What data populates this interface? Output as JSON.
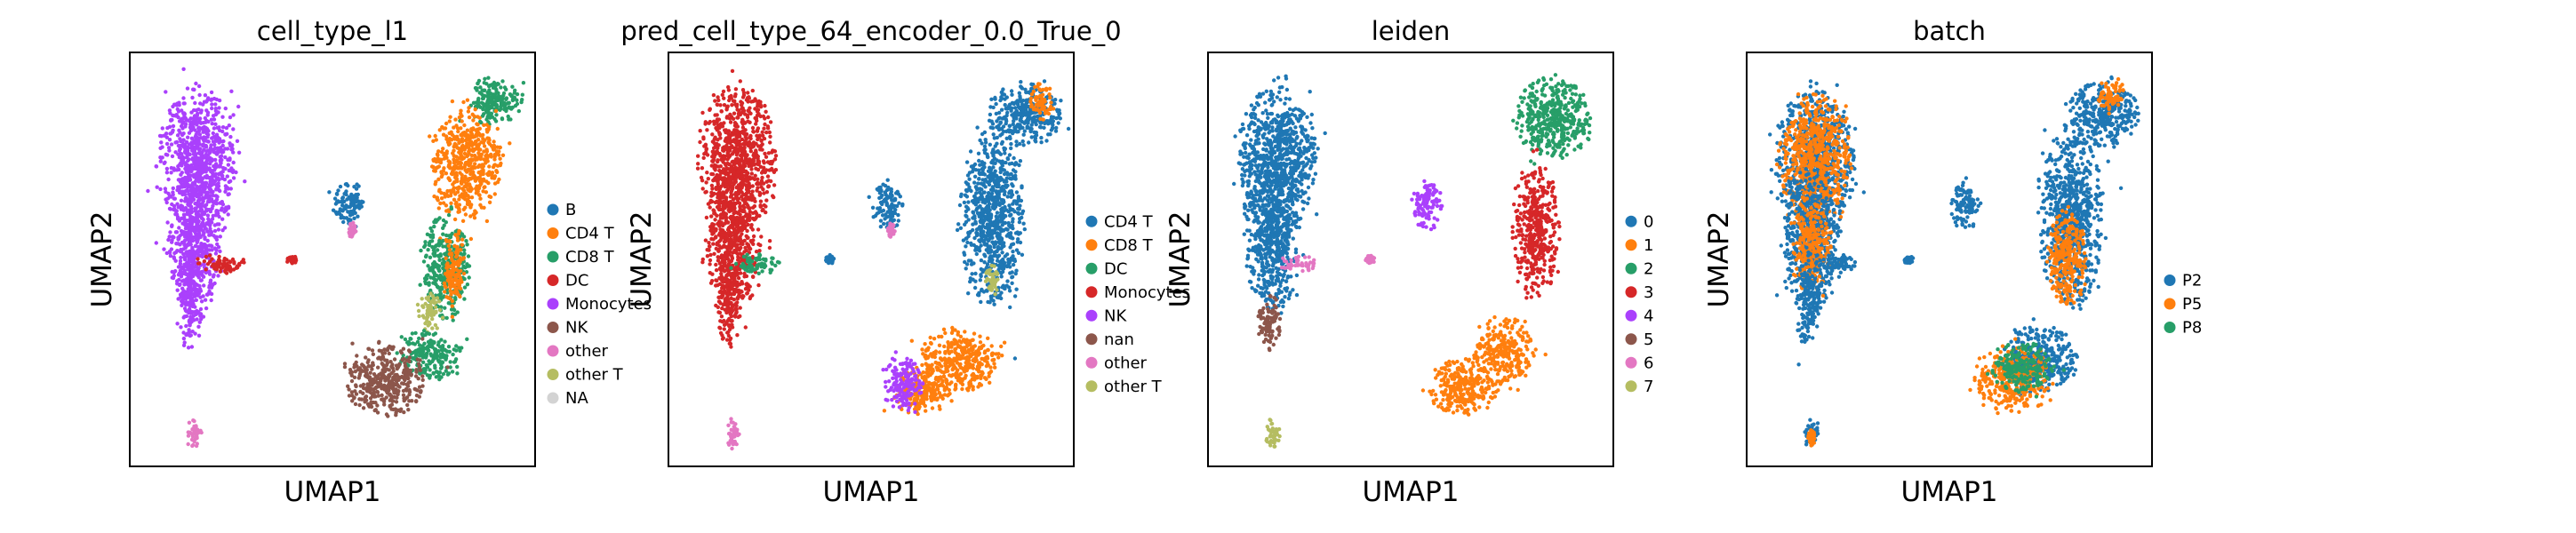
{
  "chart_data": [
    {
      "type": "scatter",
      "title": "cell_type_l1",
      "xlabel": "UMAP1",
      "ylabel": "UMAP2",
      "legend_placement": "right-outside",
      "legend": [
        {
          "label": "B",
          "color": "#1f77b4"
        },
        {
          "label": "CD4 T",
          "color": "#ff7f0e"
        },
        {
          "label": "CD8 T",
          "color": "#279e68"
        },
        {
          "label": "DC",
          "color": "#d62728"
        },
        {
          "label": "Monocytes",
          "color": "#aa40fc"
        },
        {
          "label": "NK",
          "color": "#8c564b"
        },
        {
          "label": "other",
          "color": "#e377c2"
        },
        {
          "label": "other T",
          "color": "#b5bd61"
        },
        {
          "label": "NA",
          "color": "#d3d3d3"
        }
      ],
      "clusters": [
        {
          "c": 4,
          "x": 0.17,
          "y": 0.26,
          "rx": 0.1,
          "ry": 0.18
        },
        {
          "c": 4,
          "x": 0.16,
          "y": 0.45,
          "rx": 0.07,
          "ry": 0.18
        },
        {
          "c": 4,
          "x": 0.15,
          "y": 0.6,
          "rx": 0.03,
          "ry": 0.12
        },
        {
          "c": 3,
          "x": 0.22,
          "y": 0.51,
          "rx": 0.06,
          "ry": 0.025
        },
        {
          "c": 3,
          "x": 0.4,
          "y": 0.5,
          "rx": 0.012,
          "ry": 0.01
        },
        {
          "c": 6,
          "x": 0.16,
          "y": 0.92,
          "rx": 0.018,
          "ry": 0.04
        },
        {
          "c": 0,
          "x": 0.54,
          "y": 0.37,
          "rx": 0.04,
          "ry": 0.06
        },
        {
          "c": 6,
          "x": 0.55,
          "y": 0.43,
          "rx": 0.01,
          "ry": 0.02
        },
        {
          "c": 2,
          "x": 0.9,
          "y": 0.12,
          "rx": 0.07,
          "ry": 0.06
        },
        {
          "c": 1,
          "x": 0.83,
          "y": 0.27,
          "rx": 0.09,
          "ry": 0.14
        },
        {
          "c": 2,
          "x": 0.78,
          "y": 0.52,
          "rx": 0.06,
          "ry": 0.13
        },
        {
          "c": 1,
          "x": 0.8,
          "y": 0.52,
          "rx": 0.03,
          "ry": 0.1
        },
        {
          "c": 7,
          "x": 0.74,
          "y": 0.63,
          "rx": 0.03,
          "ry": 0.05
        },
        {
          "c": 2,
          "x": 0.74,
          "y": 0.73,
          "rx": 0.08,
          "ry": 0.06
        },
        {
          "c": 5,
          "x": 0.63,
          "y": 0.79,
          "rx": 0.1,
          "ry": 0.09
        }
      ]
    },
    {
      "type": "scatter",
      "title": "pred_cell_type_64_encoder_0.0_True_0",
      "xlabel": "UMAP1",
      "ylabel": "UMAP2",
      "legend_placement": "right-outside",
      "legend": [
        {
          "label": "CD4 T",
          "color": "#1f77b4"
        },
        {
          "label": "CD8 T",
          "color": "#ff7f0e"
        },
        {
          "label": "DC",
          "color": "#279e68"
        },
        {
          "label": "Monocytes",
          "color": "#d62728"
        },
        {
          "label": "NK",
          "color": "#aa40fc"
        },
        {
          "label": "nan",
          "color": "#8c564b"
        },
        {
          "label": "other",
          "color": "#e377c2"
        },
        {
          "label": "other T",
          "color": "#b5bd61"
        }
      ],
      "clusters": [
        {
          "c": 3,
          "x": 0.17,
          "y": 0.26,
          "rx": 0.1,
          "ry": 0.18
        },
        {
          "c": 3,
          "x": 0.16,
          "y": 0.45,
          "rx": 0.07,
          "ry": 0.18
        },
        {
          "c": 3,
          "x": 0.15,
          "y": 0.6,
          "rx": 0.03,
          "ry": 0.12
        },
        {
          "c": 2,
          "x": 0.22,
          "y": 0.51,
          "rx": 0.06,
          "ry": 0.025
        },
        {
          "c": 0,
          "x": 0.4,
          "y": 0.5,
          "rx": 0.012,
          "ry": 0.01
        },
        {
          "c": 6,
          "x": 0.16,
          "y": 0.92,
          "rx": 0.018,
          "ry": 0.04
        },
        {
          "c": 0,
          "x": 0.54,
          "y": 0.37,
          "rx": 0.04,
          "ry": 0.06
        },
        {
          "c": 6,
          "x": 0.55,
          "y": 0.43,
          "rx": 0.01,
          "ry": 0.02
        },
        {
          "c": 0,
          "x": 0.88,
          "y": 0.15,
          "rx": 0.09,
          "ry": 0.08
        },
        {
          "c": 1,
          "x": 0.92,
          "y": 0.12,
          "rx": 0.03,
          "ry": 0.05
        },
        {
          "c": 0,
          "x": 0.8,
          "y": 0.4,
          "rx": 0.08,
          "ry": 0.22
        },
        {
          "c": 7,
          "x": 0.8,
          "y": 0.55,
          "rx": 0.02,
          "ry": 0.04
        },
        {
          "c": 1,
          "x": 0.72,
          "y": 0.74,
          "rx": 0.1,
          "ry": 0.08
        },
        {
          "c": 1,
          "x": 0.63,
          "y": 0.82,
          "rx": 0.08,
          "ry": 0.06
        },
        {
          "c": 4,
          "x": 0.58,
          "y": 0.8,
          "rx": 0.05,
          "ry": 0.07
        }
      ]
    },
    {
      "type": "scatter",
      "title": "leiden",
      "xlabel": "UMAP1",
      "ylabel": "UMAP2",
      "legend_placement": "right-outside",
      "legend": [
        {
          "label": "0",
          "color": "#1f77b4"
        },
        {
          "label": "1",
          "color": "#ff7f0e"
        },
        {
          "label": "2",
          "color": "#279e68"
        },
        {
          "label": "3",
          "color": "#d62728"
        },
        {
          "label": "4",
          "color": "#aa40fc"
        },
        {
          "label": "5",
          "color": "#8c564b"
        },
        {
          "label": "6",
          "color": "#e377c2"
        },
        {
          "label": "7",
          "color": "#b5bd61"
        }
      ],
      "clusters": [
        {
          "c": 0,
          "x": 0.17,
          "y": 0.26,
          "rx": 0.1,
          "ry": 0.18
        },
        {
          "c": 0,
          "x": 0.16,
          "y": 0.45,
          "rx": 0.07,
          "ry": 0.18
        },
        {
          "c": 5,
          "x": 0.15,
          "y": 0.65,
          "rx": 0.03,
          "ry": 0.07
        },
        {
          "c": 6,
          "x": 0.22,
          "y": 0.51,
          "rx": 0.05,
          "ry": 0.02
        },
        {
          "c": 6,
          "x": 0.4,
          "y": 0.5,
          "rx": 0.012,
          "ry": 0.01
        },
        {
          "c": 7,
          "x": 0.16,
          "y": 0.92,
          "rx": 0.018,
          "ry": 0.04
        },
        {
          "c": 4,
          "x": 0.54,
          "y": 0.37,
          "rx": 0.04,
          "ry": 0.06
        },
        {
          "c": 2,
          "x": 0.85,
          "y": 0.16,
          "rx": 0.1,
          "ry": 0.1
        },
        {
          "c": 3,
          "x": 0.81,
          "y": 0.43,
          "rx": 0.06,
          "ry": 0.16
        },
        {
          "c": 1,
          "x": 0.73,
          "y": 0.72,
          "rx": 0.08,
          "ry": 0.08
        },
        {
          "c": 1,
          "x": 0.63,
          "y": 0.81,
          "rx": 0.09,
          "ry": 0.07
        }
      ]
    },
    {
      "type": "scatter",
      "title": "batch",
      "xlabel": "UMAP1",
      "ylabel": "UMAP2",
      "legend_placement": "right-outside",
      "legend": [
        {
          "label": "P2",
          "color": "#1f77b4"
        },
        {
          "label": "P5",
          "color": "#ff7f0e"
        },
        {
          "label": "P8",
          "color": "#279e68"
        }
      ],
      "clusters": [
        {
          "c": 0,
          "x": 0.17,
          "y": 0.26,
          "rx": 0.1,
          "ry": 0.18
        },
        {
          "c": 1,
          "x": 0.17,
          "y": 0.26,
          "rx": 0.09,
          "ry": 0.16
        },
        {
          "c": 0,
          "x": 0.16,
          "y": 0.45,
          "rx": 0.07,
          "ry": 0.18
        },
        {
          "c": 1,
          "x": 0.16,
          "y": 0.47,
          "rx": 0.05,
          "ry": 0.12
        },
        {
          "c": 0,
          "x": 0.15,
          "y": 0.6,
          "rx": 0.03,
          "ry": 0.12
        },
        {
          "c": 0,
          "x": 0.22,
          "y": 0.51,
          "rx": 0.06,
          "ry": 0.025
        },
        {
          "c": 0,
          "x": 0.4,
          "y": 0.5,
          "rx": 0.012,
          "ry": 0.01
        },
        {
          "c": 0,
          "x": 0.16,
          "y": 0.92,
          "rx": 0.018,
          "ry": 0.04
        },
        {
          "c": 1,
          "x": 0.16,
          "y": 0.93,
          "rx": 0.01,
          "ry": 0.02
        },
        {
          "c": 0,
          "x": 0.54,
          "y": 0.37,
          "rx": 0.04,
          "ry": 0.06
        },
        {
          "c": 0,
          "x": 0.88,
          "y": 0.15,
          "rx": 0.09,
          "ry": 0.08
        },
        {
          "c": 1,
          "x": 0.9,
          "y": 0.1,
          "rx": 0.04,
          "ry": 0.04
        },
        {
          "c": 0,
          "x": 0.8,
          "y": 0.4,
          "rx": 0.08,
          "ry": 0.22
        },
        {
          "c": 1,
          "x": 0.79,
          "y": 0.5,
          "rx": 0.05,
          "ry": 0.12
        },
        {
          "c": 0,
          "x": 0.72,
          "y": 0.74,
          "rx": 0.1,
          "ry": 0.08
        },
        {
          "c": 1,
          "x": 0.66,
          "y": 0.79,
          "rx": 0.1,
          "ry": 0.08
        },
        {
          "c": 2,
          "x": 0.68,
          "y": 0.76,
          "rx": 0.08,
          "ry": 0.06
        }
      ]
    }
  ]
}
